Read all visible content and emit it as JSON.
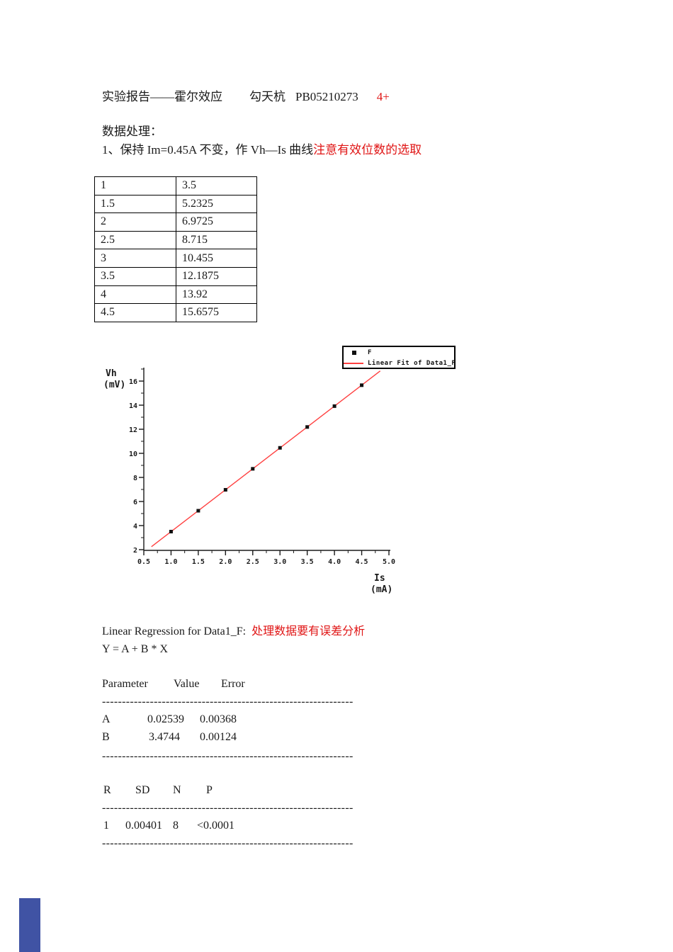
{
  "header": {
    "title": "实验报告——霍尔效应",
    "author": "勾天杭",
    "student_id": "PB05210273",
    "grade": "4+"
  },
  "section": {
    "heading": "数据处理：",
    "item1_text": "1、保持 Im=0.45A 不变，作 Vh—Is 曲线",
    "item1_note": "注意有效位数的选取"
  },
  "data_table": {
    "rows": [
      [
        "1",
        "3.5"
      ],
      [
        "1.5",
        "5.2325"
      ],
      [
        "2",
        "6.9725"
      ],
      [
        "2.5",
        "8.715"
      ],
      [
        "3",
        "10.455"
      ],
      [
        "3.5",
        "12.1875"
      ],
      [
        "4",
        "13.92"
      ],
      [
        "4.5",
        "15.6575"
      ]
    ]
  },
  "chart_data": {
    "type": "scatter",
    "title": "",
    "x": [
      1,
      1.5,
      2,
      2.5,
      3,
      3.5,
      4,
      4.5
    ],
    "series": [
      {
        "name": "F",
        "values": [
          3.5,
          5.2325,
          6.9725,
          8.715,
          10.455,
          12.1875,
          13.92,
          15.6575
        ]
      }
    ],
    "fit": {
      "label": "Linear Fit of Data1_F",
      "A": 0.02539,
      "B": 3.4744,
      "x_start": 0.64,
      "x_end": 4.84
    },
    "xlabel": [
      "Is",
      "(mA)"
    ],
    "ylabel": [
      "Vh",
      "(mV)"
    ],
    "xlim": [
      0.5,
      5.0
    ],
    "ylim": [
      2,
      17.1
    ],
    "grid": false,
    "legend_position": "top-right",
    "x_ticks": {
      "values": [
        0.5,
        1.0,
        1.5,
        2.0,
        2.5,
        3.0,
        3.5,
        4.0,
        4.5,
        5.0
      ],
      "labels": [
        "0.5",
        "1.0",
        "1.5",
        "2.0",
        "2.5",
        "3.0",
        "3.5",
        "4.0",
        "4.5",
        "5.0"
      ],
      "minor": [
        0.75,
        1.25,
        1.75,
        2.25,
        2.75,
        3.25,
        3.75,
        4.25,
        4.75
      ]
    },
    "y_ticks": {
      "values": [
        2,
        4,
        6,
        8,
        10,
        12,
        14,
        16
      ],
      "labels": [
        "2",
        "4",
        "6",
        "8",
        "10",
        "12",
        "14",
        "16"
      ],
      "minor": [
        3,
        5,
        7,
        9,
        11,
        13,
        15,
        17
      ]
    }
  },
  "regression": {
    "title": "Linear Regression for Data1_F:",
    "note": "处理数据要有误差分析",
    "equation": "Y = A + B * X",
    "separator": "---------------------------------------------------------------",
    "param_table": {
      "headers": [
        "Parameter",
        "Value",
        "Error"
      ],
      "rows": [
        [
          "A",
          "0.02539",
          "0.00368"
        ],
        [
          "B",
          "3.4744",
          "0.00124"
        ]
      ]
    },
    "stats_table": {
      "headers": [
        "R",
        "SD",
        "N",
        "P"
      ],
      "rows": [
        [
          "1",
          "0.00401",
          "8",
          "<0.0001"
        ]
      ]
    }
  },
  "colors": {
    "accent_red": "#e01515",
    "fit_line": "#ff4040",
    "marker_black": "#111111",
    "footer_mark_blue": "#4053a4"
  }
}
